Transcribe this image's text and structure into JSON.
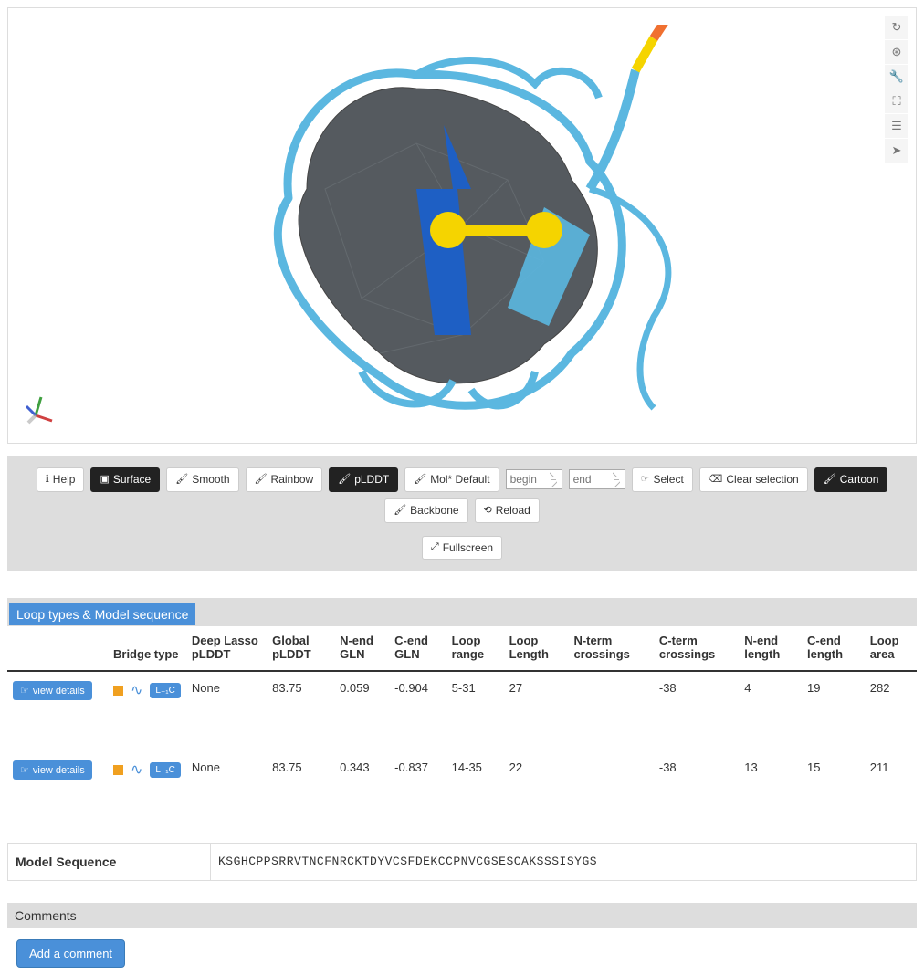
{
  "viewer": {
    "right_toolbar": [
      {
        "name": "reset-icon",
        "glyph": "↻"
      },
      {
        "name": "target-icon",
        "glyph": "⊛"
      },
      {
        "name": "settings-icon",
        "glyph": "🔧"
      },
      {
        "name": "fullscreen-icon",
        "glyph": "⛶"
      },
      {
        "name": "sliders-icon",
        "glyph": "☰"
      },
      {
        "name": "pointer-icon",
        "glyph": "➤"
      }
    ],
    "molecule": {
      "surface_color": "#555a5f",
      "ribbon_light": "#5bb7e0",
      "ribbon_dark": "#1e5fc4",
      "bond_yellow": "#f5d400",
      "tip_orange": "#f07030",
      "background": "#ffffff"
    },
    "axes": {
      "x": "#d04040",
      "y": "#40a040",
      "z": "#4060d0",
      "shadow": "#999"
    }
  },
  "controls": {
    "help": "Help",
    "surface": "Surface",
    "smooth": "Smooth",
    "rainbow": "Rainbow",
    "plddt": "pLDDT",
    "mol_default": "Mol* Default",
    "begin_ph": "begin",
    "end_ph": "end",
    "select": "Select",
    "clear_selection": "Clear selection",
    "cartoon": "Cartoon",
    "backbone": "Backbone",
    "reload": "Reload",
    "fullscreen": "Fullscreen"
  },
  "section_title": "Loop types & Model sequence",
  "table": {
    "headers": {
      "bridge_type": "Bridge type",
      "deep_lasso": "Deep Lasso pLDDT",
      "global_plddt": "Global pLDDT",
      "nend_gln": "N-end GLN",
      "cend_gln": "C-end GLN",
      "loop_range": "Loop range",
      "loop_length": "Loop Length",
      "nterm_cross": "N-term crossings",
      "cterm_cross": "C-term crossings",
      "nend_len": "N-end length",
      "cend_len": "C-end length",
      "loop_area": "Loop area"
    },
    "view_details_label": "view details",
    "badge_label": "L₋₁C",
    "rows": [
      {
        "deep_lasso": "None",
        "global_plddt": "83.75",
        "nend_gln": "0.059",
        "cend_gln": "-0.904",
        "loop_range": "5-31",
        "loop_length": "27",
        "nterm_cross": "",
        "cterm_cross": "-38",
        "nend_len": "4",
        "cend_len": "19",
        "loop_area": "282"
      },
      {
        "deep_lasso": "None",
        "global_plddt": "83.75",
        "nend_gln": "0.343",
        "cend_gln": "-0.837",
        "loop_range": "14-35",
        "loop_length": "22",
        "nterm_cross": "",
        "cterm_cross": "-38",
        "nend_len": "13",
        "cend_len": "15",
        "loop_area": "211"
      }
    ]
  },
  "model_sequence": {
    "label": "Model Sequence",
    "value": "KSGHCPPSRRVTNCFNRCKTDYVCSFDEKCCPNVCGSESCAKSSSISYGS"
  },
  "comments": {
    "header": "Comments",
    "add_button": "Add a comment"
  }
}
